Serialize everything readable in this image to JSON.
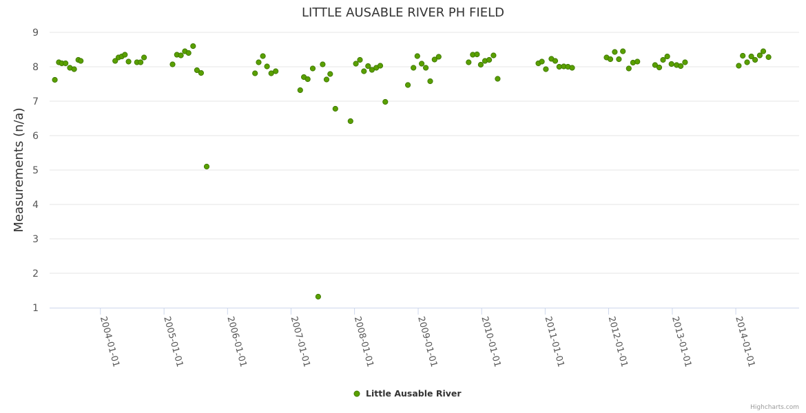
{
  "chart_data": {
    "type": "scatter",
    "title": "LITTLE AUSABLE RIVER PH FIELD",
    "xlabel": "",
    "ylabel": "Measurements (n/a)",
    "ylim": [
      1,
      9
    ],
    "yticks": [
      1,
      2,
      3,
      4,
      5,
      6,
      7,
      8,
      9
    ],
    "xlim": [
      "2003-03-15",
      "2014-12-31"
    ],
    "xticks": [
      "2004-01-01",
      "2005-01-01",
      "2006-01-01",
      "2007-01-01",
      "2008-01-01",
      "2009-01-01",
      "2010-01-01",
      "2011-01-01",
      "2012-01-01",
      "2013-01-01",
      "2014-01-01"
    ],
    "grid": true,
    "legend_position": "bottom-center",
    "series": [
      {
        "name": "Little Ausable River",
        "color": "#5aa000",
        "points": [
          [
            "2003-04-14",
            7.62
          ],
          [
            "2003-05-07",
            8.13
          ],
          [
            "2003-05-24",
            8.1
          ],
          [
            "2003-06-15",
            8.1
          ],
          [
            "2003-07-10",
            7.97
          ],
          [
            "2003-08-03",
            7.93
          ],
          [
            "2003-08-27",
            8.2
          ],
          [
            "2003-09-10",
            8.17
          ],
          [
            "2004-03-26",
            8.17
          ],
          [
            "2004-04-14",
            8.27
          ],
          [
            "2004-05-03",
            8.3
          ],
          [
            "2004-05-21",
            8.35
          ],
          [
            "2004-06-11",
            8.15
          ],
          [
            "2004-07-29",
            8.13
          ],
          [
            "2004-08-19",
            8.13
          ],
          [
            "2004-09-08",
            8.27
          ],
          [
            "2005-02-19",
            8.07
          ],
          [
            "2005-03-16",
            8.35
          ],
          [
            "2005-04-08",
            8.33
          ],
          [
            "2005-05-01",
            8.45
          ],
          [
            "2005-05-22",
            8.4
          ],
          [
            "2005-06-17",
            8.6
          ],
          [
            "2005-07-09",
            7.9
          ],
          [
            "2005-08-02",
            7.82
          ],
          [
            "2005-09-03",
            5.1
          ],
          [
            "2006-06-08",
            7.81
          ],
          [
            "2006-06-29",
            8.13
          ],
          [
            "2006-07-23",
            8.31
          ],
          [
            "2006-08-16",
            8.01
          ],
          [
            "2006-09-09",
            7.81
          ],
          [
            "2006-10-05",
            7.87
          ],
          [
            "2007-02-23",
            7.32
          ],
          [
            "2007-03-16",
            7.7
          ],
          [
            "2007-04-07",
            7.64
          ],
          [
            "2007-05-06",
            7.95
          ],
          [
            "2007-06-06",
            1.32
          ],
          [
            "2007-07-02",
            8.07
          ],
          [
            "2007-07-24",
            7.63
          ],
          [
            "2007-08-14",
            7.79
          ],
          [
            "2007-09-13",
            6.78
          ],
          [
            "2007-12-09",
            6.42
          ],
          [
            "2008-01-09",
            8.09
          ],
          [
            "2008-02-01",
            8.2
          ],
          [
            "2008-02-24",
            7.87
          ],
          [
            "2008-03-19",
            8.02
          ],
          [
            "2008-04-10",
            7.91
          ],
          [
            "2008-05-05",
            7.97
          ],
          [
            "2008-05-28",
            8.03
          ],
          [
            "2008-06-26",
            6.98
          ],
          [
            "2008-11-03",
            7.47
          ],
          [
            "2008-12-05",
            7.97
          ],
          [
            "2008-12-27",
            8.31
          ],
          [
            "2009-01-21",
            8.09
          ],
          [
            "2009-02-14",
            7.97
          ],
          [
            "2009-03-11",
            7.58
          ],
          [
            "2009-04-05",
            8.21
          ],
          [
            "2009-04-29",
            8.29
          ],
          [
            "2009-10-18",
            8.13
          ],
          [
            "2009-11-11",
            8.35
          ],
          [
            "2009-12-05",
            8.36
          ],
          [
            "2009-12-27",
            8.06
          ],
          [
            "2010-01-20",
            8.17
          ],
          [
            "2010-02-13",
            8.2
          ],
          [
            "2010-03-10",
            8.33
          ],
          [
            "2010-04-03",
            7.65
          ],
          [
            "2010-11-23",
            8.1
          ],
          [
            "2010-12-13",
            8.15
          ],
          [
            "2011-01-05",
            7.93
          ],
          [
            "2011-02-06",
            8.23
          ],
          [
            "2011-02-28",
            8.17
          ],
          [
            "2011-03-23",
            8.0
          ],
          [
            "2011-04-18",
            8.01
          ],
          [
            "2011-05-12",
            8.0
          ],
          [
            "2011-06-05",
            7.97
          ],
          [
            "2011-12-20",
            8.27
          ],
          [
            "2012-01-11",
            8.22
          ],
          [
            "2012-02-05",
            8.43
          ],
          [
            "2012-02-29",
            8.22
          ],
          [
            "2012-03-23",
            8.45
          ],
          [
            "2012-04-26",
            7.95
          ],
          [
            "2012-05-20",
            8.12
          ],
          [
            "2012-06-14",
            8.15
          ],
          [
            "2012-09-24",
            8.05
          ],
          [
            "2012-10-18",
            7.98
          ],
          [
            "2012-11-09",
            8.2
          ],
          [
            "2012-12-03",
            8.3
          ],
          [
            "2012-12-27",
            8.08
          ],
          [
            "2013-01-26",
            8.05
          ],
          [
            "2013-02-18",
            8.02
          ],
          [
            "2013-03-15",
            8.13
          ],
          [
            "2014-01-18",
            8.03
          ],
          [
            "2014-02-10",
            8.32
          ],
          [
            "2014-03-07",
            8.13
          ],
          [
            "2014-03-31",
            8.3
          ],
          [
            "2014-04-22",
            8.2
          ],
          [
            "2014-05-19",
            8.33
          ],
          [
            "2014-06-08",
            8.45
          ],
          [
            "2014-07-08",
            8.28
          ]
        ]
      }
    ]
  },
  "credits": "Highcharts.com"
}
